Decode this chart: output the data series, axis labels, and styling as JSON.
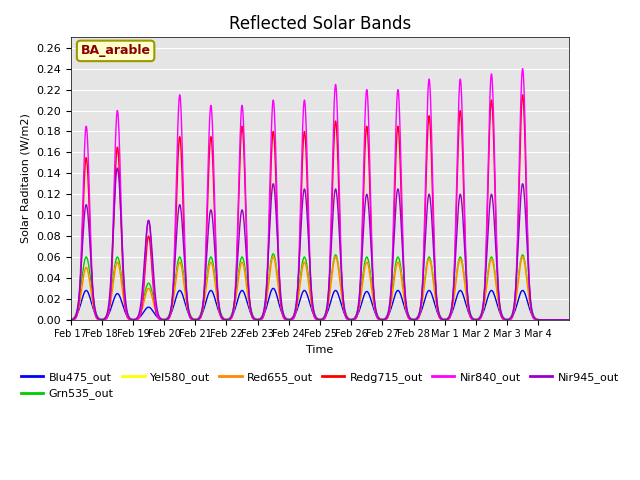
{
  "title": "Reflected Solar Bands",
  "xlabel": "Time",
  "ylabel": "Solar Raditaion (W/m2)",
  "annotation": "BA_arable",
  "annotation_color": "#8B0000",
  "annotation_bg": "#FFFFCC",
  "annotation_edge": "#999900",
  "ylim": [
    0.0,
    0.27
  ],
  "yticks": [
    0.0,
    0.02,
    0.04,
    0.06,
    0.08,
    0.1,
    0.12,
    0.14,
    0.16,
    0.18,
    0.2,
    0.22,
    0.24,
    0.26
  ],
  "date_labels": [
    "Feb 17",
    "Feb 18",
    "Feb 19",
    "Feb 20",
    "Feb 21",
    "Feb 22",
    "Feb 23",
    "Feb 24",
    "Feb 25",
    "Feb 26",
    "Feb 27",
    "Feb 28",
    "Mar 1",
    "Mar 2",
    "Mar 3",
    "Mar 4"
  ],
  "series_order": [
    "Blu475_out",
    "Grn535_out",
    "Yel580_out",
    "Red655_out",
    "Redg715_out",
    "Nir840_out",
    "Nir945_out"
  ],
  "series": {
    "Blu475_out": {
      "color": "#0000FF",
      "lw": 1.0
    },
    "Grn535_out": {
      "color": "#00CC00",
      "lw": 1.0
    },
    "Yel580_out": {
      "color": "#FFFF00",
      "lw": 1.0
    },
    "Red655_out": {
      "color": "#FF8800",
      "lw": 1.0
    },
    "Redg715_out": {
      "color": "#FF0000",
      "lw": 1.0
    },
    "Nir840_out": {
      "color": "#FF00FF",
      "lw": 1.0
    },
    "Nir945_out": {
      "color": "#9900CC",
      "lw": 1.0
    }
  },
  "nir840_peaks": [
    0.185,
    0.2,
    0.095,
    0.215,
    0.205,
    0.205,
    0.21,
    0.21,
    0.225,
    0.22,
    0.22,
    0.23,
    0.23,
    0.235,
    0.24,
    0.0
  ],
  "nir945_peaks": [
    0.11,
    0.145,
    0.095,
    0.11,
    0.105,
    0.105,
    0.13,
    0.125,
    0.125,
    0.12,
    0.125,
    0.12,
    0.12,
    0.12,
    0.13,
    0.0
  ],
  "redg715_peaks": [
    0.155,
    0.165,
    0.08,
    0.175,
    0.175,
    0.185,
    0.18,
    0.18,
    0.19,
    0.185,
    0.185,
    0.195,
    0.2,
    0.21,
    0.215,
    0.0
  ],
  "red655_peaks": [
    0.05,
    0.055,
    0.03,
    0.055,
    0.055,
    0.055,
    0.06,
    0.055,
    0.06,
    0.055,
    0.055,
    0.058,
    0.058,
    0.058,
    0.06,
    0.0
  ],
  "yel580_peaks": [
    0.05,
    0.055,
    0.03,
    0.055,
    0.055,
    0.055,
    0.06,
    0.055,
    0.06,
    0.055,
    0.055,
    0.058,
    0.058,
    0.058,
    0.06,
    0.0
  ],
  "grn535_peaks": [
    0.06,
    0.06,
    0.035,
    0.06,
    0.06,
    0.06,
    0.063,
    0.06,
    0.062,
    0.06,
    0.06,
    0.06,
    0.06,
    0.06,
    0.062,
    0.0
  ],
  "blu475_peaks": [
    0.028,
    0.025,
    0.012,
    0.028,
    0.028,
    0.028,
    0.03,
    0.028,
    0.028,
    0.027,
    0.028,
    0.028,
    0.028,
    0.028,
    0.028,
    0.0
  ],
  "bg_color": "#E5E5E5",
  "fig_bg": "#FFFFFF"
}
